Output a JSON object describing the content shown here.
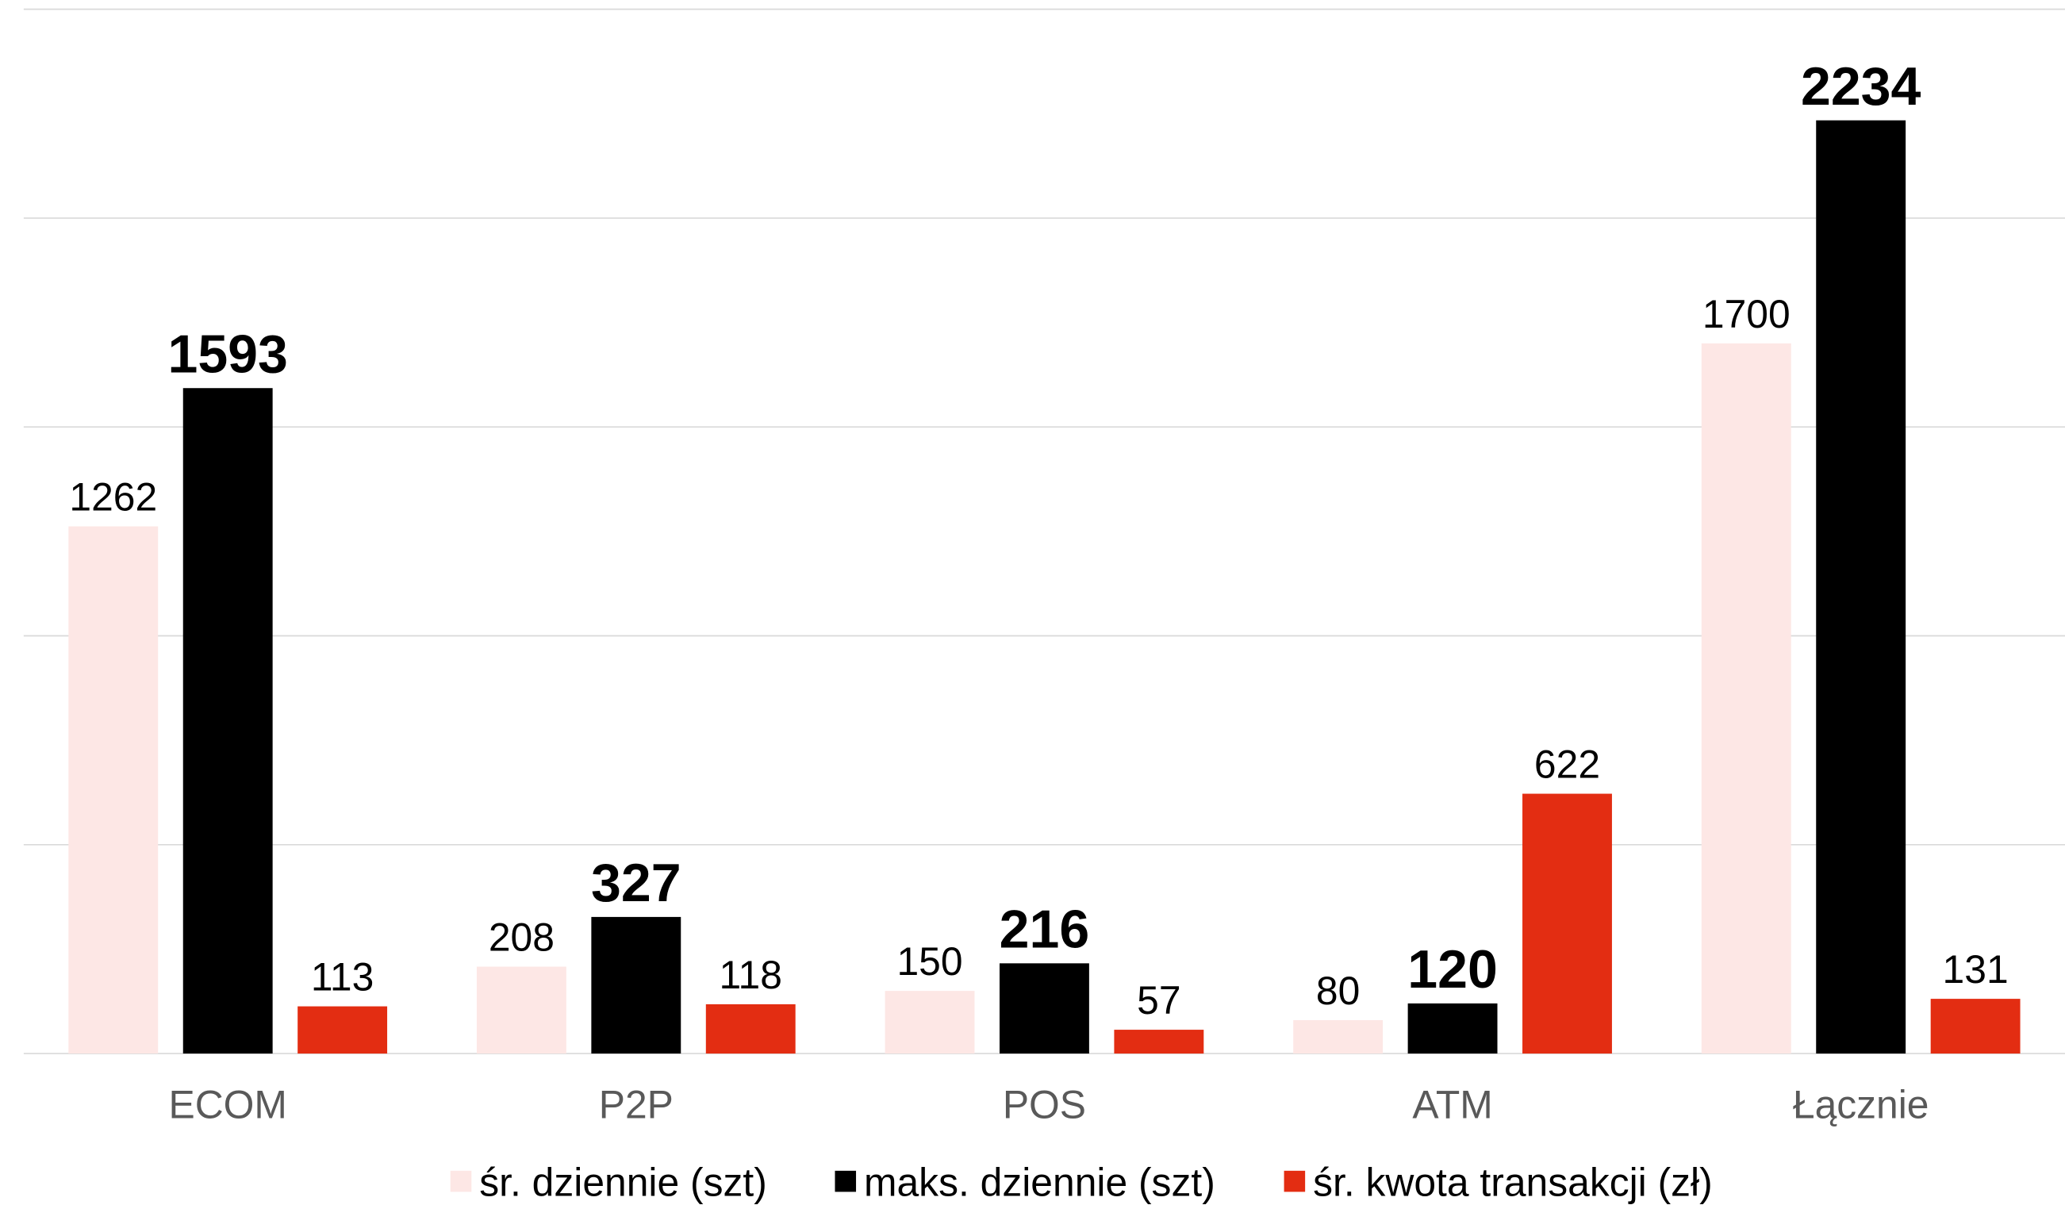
{
  "chart_data": {
    "type": "bar",
    "categories": [
      "ECOM",
      "P2P",
      "POS",
      "ATM",
      "Łącznie"
    ],
    "series": [
      {
        "name": "śr. dziennie (szt)",
        "color": "#fde7e5",
        "values": [
          1262,
          208,
          150,
          80,
          1700
        ]
      },
      {
        "name": "maks. dziennie (szt)",
        "color": "#000000",
        "values": [
          1593,
          327,
          216,
          120,
          2234
        ]
      },
      {
        "name": "śr. kwota transakcji (zł)",
        "color": "#e32d12",
        "values": [
          113,
          118,
          57,
          622,
          131
        ]
      }
    ],
    "ylim": [
      0,
      2500
    ],
    "yticks": [
      0,
      500,
      1000,
      1500,
      2000,
      2500
    ],
    "grid": true,
    "legend": "bottom"
  }
}
